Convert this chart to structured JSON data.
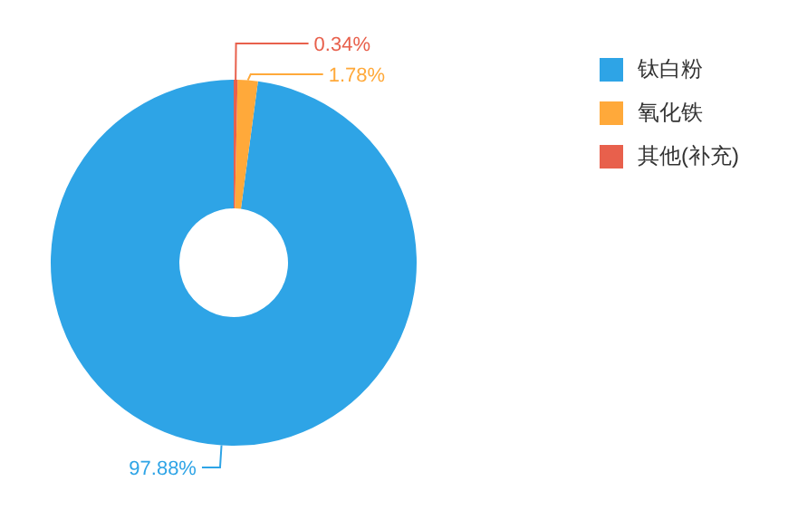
{
  "chart_data": {
    "type": "donut",
    "categories": [
      "钛白粉",
      "氧化铁",
      "其他(补充)"
    ],
    "values": [
      97.88,
      1.78,
      0.34
    ],
    "colors": [
      "#2ea4e6",
      "#ffa93a",
      "#e8604c"
    ],
    "value_labels": [
      "97.88%",
      "1.78%",
      "0.34%"
    ],
    "legend": "top right"
  }
}
